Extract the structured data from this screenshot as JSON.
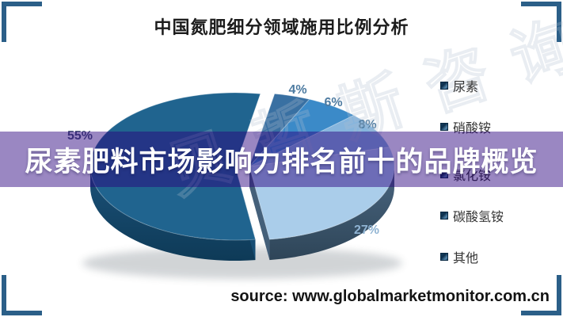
{
  "header": {
    "title": "中国氮肥细分领域施用比例分析"
  },
  "banner": {
    "text": "尿素肥料市场影响力排名前十的品牌概览",
    "bg_color": "#9A87C2",
    "text_color": "#FFFFFF"
  },
  "watermark": {
    "text": "贝哲斯咨询"
  },
  "source": {
    "text": "source: www.globalmarketmonitor.com.cn"
  },
  "frame_color": "#2B5F88",
  "chart_data": {
    "type": "pie",
    "style": "3d-exploded",
    "title": "中国氮肥细分领域施用比例分析",
    "categories": [
      "尿素",
      "硝酸铵",
      "氯化铵",
      "碳酸氢铵",
      "其他"
    ],
    "values": [
      55,
      4,
      6,
      8,
      27
    ],
    "data_labels": [
      "55%",
      "4%",
      "6%",
      "8%",
      "27%"
    ],
    "slice_colors": [
      "#20648F",
      "#3970A2",
      "#3B8AC8",
      "#86B5DD",
      "#AACDEA"
    ],
    "label_colors": [
      "#4A5878",
      "#4D7BA1",
      "#4D7BA1",
      "#4D7BA1",
      "#8FB3D2"
    ],
    "side_colors": {
      "dark_slice_top": "#1B527A",
      "dark_slice_bottom": "#0E3A57",
      "light_slice_top": "#4A6680",
      "light_slice_bottom": "#2E4558"
    },
    "start_angle_deg": 172,
    "legend": {
      "position": "right",
      "items": [
        "尿素",
        "硝酸铵",
        "氯化铵",
        "碳酸氢铵",
        "其他"
      ]
    }
  }
}
